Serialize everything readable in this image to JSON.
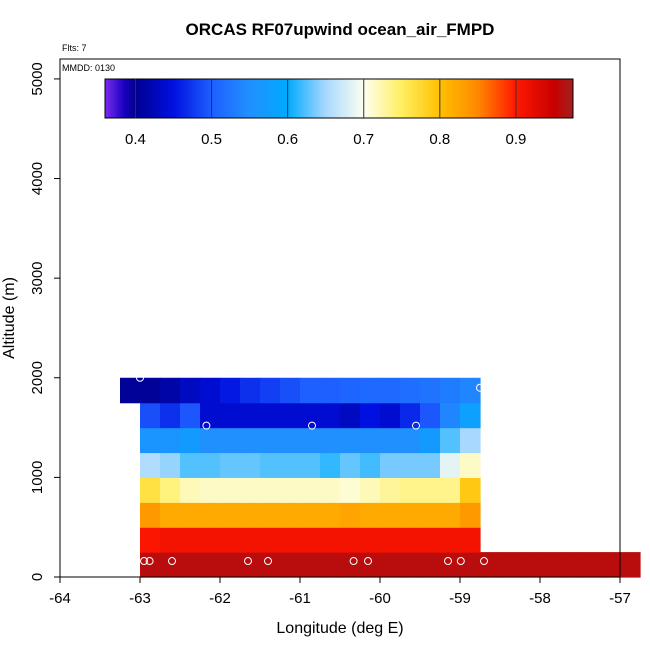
{
  "chart_data": {
    "type": "heatmap",
    "title": "ORCAS RF07upwind ocean_air_FMPD",
    "xlabel": "Longitude (deg E)",
    "ylabel": "Altitude (m)",
    "xlim": [
      -64,
      -57
    ],
    "ylim": [
      0,
      5200
    ],
    "xticks": [
      "-64",
      "-63",
      "-62",
      "-61",
      "-60",
      "-59",
      "-58",
      "-57"
    ],
    "yticks": [
      "0",
      "1000",
      "2000",
      "3000",
      "4000",
      "5000"
    ],
    "flights_note": "Flts: 7",
    "date_note": "MMDD: 0130",
    "colorbar": {
      "range": [
        0.36,
        0.975
      ],
      "ticks": [
        "0.4",
        "0.5",
        "0.6",
        "0.7",
        "0.8",
        "0.9"
      ],
      "stops": [
        [
          0.36,
          "#7b2cef"
        ],
        [
          0.385,
          "#1a00c0"
        ],
        [
          0.4,
          "#000090"
        ],
        [
          0.45,
          "#0010e0"
        ],
        [
          0.5,
          "#1e5fff"
        ],
        [
          0.55,
          "#2090ff"
        ],
        [
          0.6,
          "#00aaff"
        ],
        [
          0.65,
          "#a8d8ff"
        ],
        [
          0.7,
          "#fdfff0"
        ],
        [
          0.75,
          "#ffef60"
        ],
        [
          0.8,
          "#ffc000"
        ],
        [
          0.85,
          "#ff8800"
        ],
        [
          0.9,
          "#ff1800"
        ],
        [
          0.95,
          "#c80000"
        ],
        [
          0.975,
          "#a22020"
        ]
      ]
    },
    "rows": [
      {
        "alt": [
          0,
          250
        ],
        "lon0": -63.0,
        "values": [
          0.96,
          0.96,
          0.96,
          0.96,
          0.96,
          0.96,
          0.96,
          0.96,
          0.96,
          0.96,
          0.96,
          0.96,
          0.96,
          0.96,
          0.96,
          0.96,
          0.96,
          0.96,
          0.96,
          0.96,
          0.96,
          0.96,
          0.96,
          0.96,
          0.96
        ]
      },
      {
        "alt": [
          250,
          500
        ],
        "lon0": -63.0,
        "values": [
          0.905,
          0.91,
          0.91,
          0.91,
          0.91,
          0.91,
          0.91,
          0.91,
          0.91,
          0.91,
          0.91,
          0.91,
          0.91,
          0.91,
          0.91,
          0.91,
          0.91
        ]
      },
      {
        "alt": [
          500,
          750
        ],
        "lon0": -63.0,
        "values": [
          0.835,
          0.82,
          0.82,
          0.82,
          0.82,
          0.82,
          0.82,
          0.82,
          0.82,
          0.82,
          0.825,
          0.82,
          0.82,
          0.82,
          0.82,
          0.82,
          0.835
        ]
      },
      {
        "alt": [
          750,
          1000
        ],
        "lon0": -63.0,
        "values": [
          0.765,
          0.74,
          0.72,
          0.715,
          0.715,
          0.715,
          0.715,
          0.715,
          0.715,
          0.715,
          0.71,
          0.72,
          0.73,
          0.735,
          0.735,
          0.735,
          0.79
        ]
      },
      {
        "alt": [
          1000,
          1250
        ],
        "lon0": -63.0,
        "values": [
          0.655,
          0.645,
          0.625,
          0.625,
          0.63,
          0.63,
          0.625,
          0.625,
          0.625,
          0.615,
          0.63,
          0.62,
          0.635,
          0.635,
          0.635,
          0.685,
          0.715
        ]
      },
      {
        "alt": [
          1250,
          1500
        ],
        "lon0": -63.0,
        "values": [
          0.56,
          0.56,
          0.57,
          0.55,
          0.55,
          0.55,
          0.55,
          0.55,
          0.55,
          0.55,
          0.55,
          0.55,
          0.55,
          0.55,
          0.57,
          0.625,
          0.65
        ]
      },
      {
        "alt": [
          1500,
          1750
        ],
        "lon0": -63.0,
        "values": [
          0.49,
          0.47,
          0.495,
          0.44,
          0.44,
          0.44,
          0.44,
          0.44,
          0.44,
          0.44,
          0.43,
          0.45,
          0.44,
          0.465,
          0.495,
          0.54,
          0.58
        ]
      },
      {
        "alt": [
          1750,
          2000
        ],
        "lon0": -63.25,
        "values": [
          0.405,
          0.405,
          0.415,
          0.43,
          0.44,
          0.455,
          0.47,
          0.48,
          0.49,
          0.5,
          0.5,
          0.505,
          0.51,
          0.51,
          0.515,
          0.52,
          0.53,
          0.54
        ]
      }
    ],
    "points": [
      {
        "lon": -63.0,
        "alt": 2000
      },
      {
        "lon": -58.75,
        "alt": 1900
      },
      {
        "lon": -62.17,
        "alt": 1520
      },
      {
        "lon": -60.85,
        "alt": 1520
      },
      {
        "lon": -59.55,
        "alt": 1520
      },
      {
        "lon": -62.95,
        "alt": 160
      },
      {
        "lon": -62.88,
        "alt": 160
      },
      {
        "lon": -62.6,
        "alt": 160
      },
      {
        "lon": -61.65,
        "alt": 160
      },
      {
        "lon": -61.4,
        "alt": 160
      },
      {
        "lon": -60.33,
        "alt": 160
      },
      {
        "lon": -60.15,
        "alt": 160
      },
      {
        "lon": -59.15,
        "alt": 160
      },
      {
        "lon": -58.99,
        "alt": 160
      },
      {
        "lon": -58.7,
        "alt": 160
      }
    ]
  }
}
